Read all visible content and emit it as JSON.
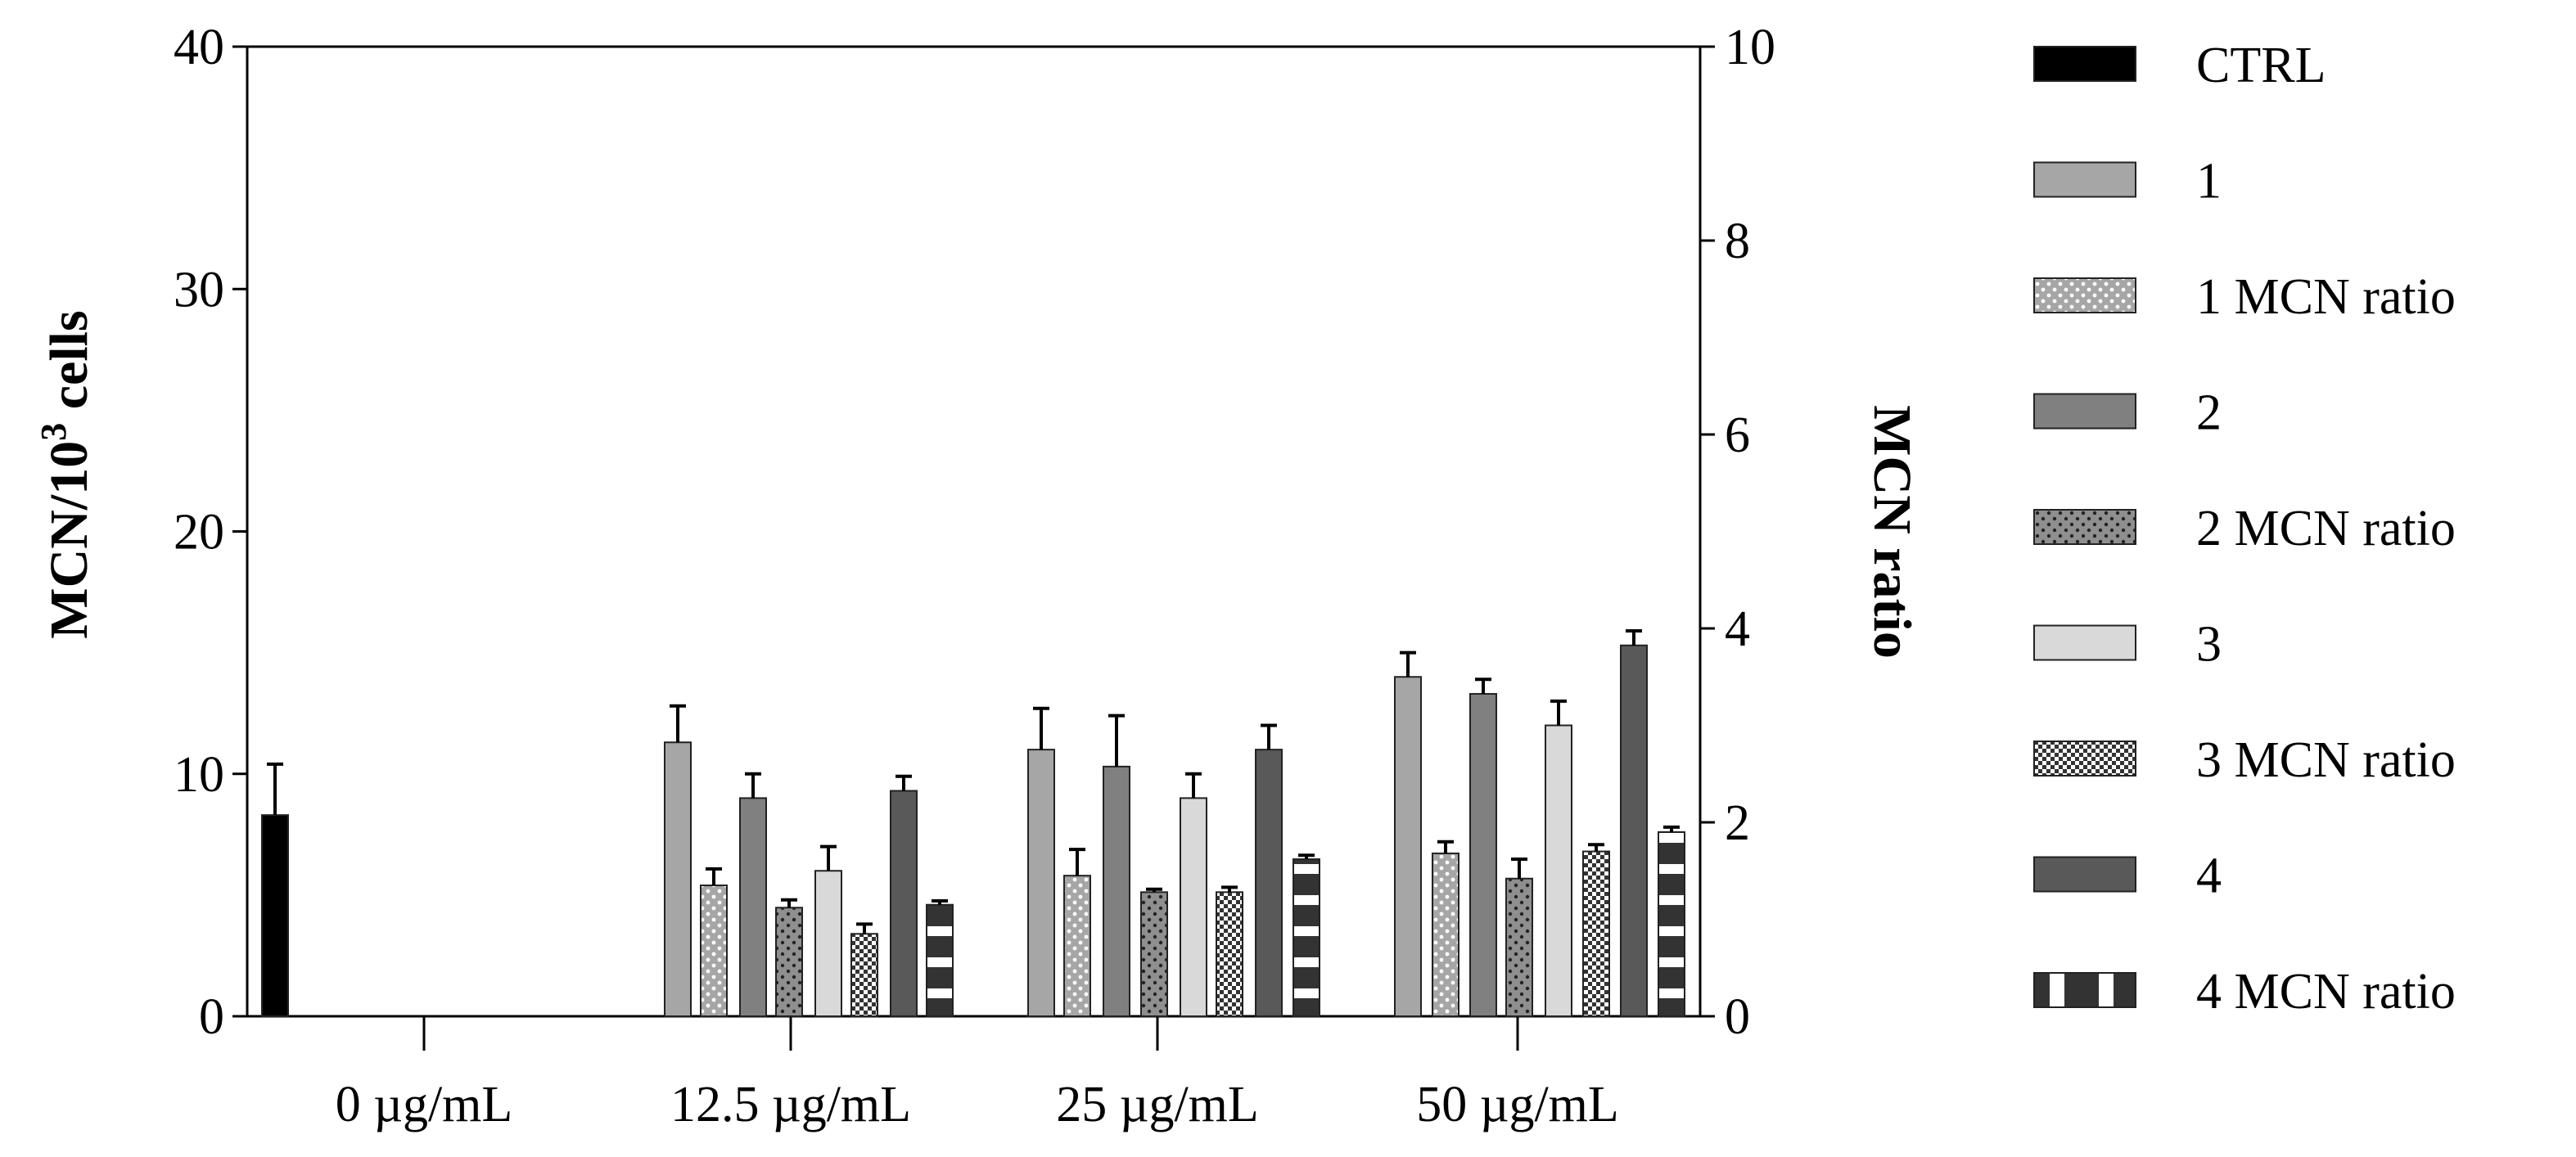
{
  "chart_data": {
    "type": "bar",
    "categories": [
      "0 µg/mL",
      "12.5 µg/mL",
      "25 µg/mL",
      "50 µg/mL"
    ],
    "left_axis": {
      "label_main": "MCN/10",
      "label_sup": "3",
      "label_tail": " cells",
      "ylim": [
        0,
        40
      ],
      "ticks": [
        "0",
        "10",
        "20",
        "30",
        "40"
      ]
    },
    "right_axis": {
      "label": "MCN ratio",
      "ylim": [
        0,
        10
      ],
      "ticks": [
        "0",
        "2",
        "4",
        "6",
        "8",
        "10"
      ]
    },
    "series": [
      {
        "name": "CTRL",
        "axis": "left",
        "pattern": "solid-black",
        "values": [
          8.3,
          null,
          null,
          null
        ],
        "errors": [
          2.1,
          null,
          null,
          null
        ]
      },
      {
        "name": "1",
        "axis": "left",
        "pattern": "gray",
        "values": [
          null,
          11.3,
          11.0,
          14.0
        ],
        "errors": [
          null,
          1.5,
          1.7,
          1.0
        ]
      },
      {
        "name": "1 MCN ratio",
        "axis": "right",
        "pattern": "gray-white-dots",
        "values": [
          null,
          1.35,
          1.45,
          1.68
        ],
        "errors": [
          null,
          0.17,
          0.27,
          0.12
        ]
      },
      {
        "name": "2",
        "axis": "left",
        "pattern": "dark-gray",
        "values": [
          null,
          9.0,
          10.3,
          13.3
        ],
        "errors": [
          null,
          1.0,
          2.1,
          0.6
        ]
      },
      {
        "name": "2 MCN ratio",
        "axis": "right",
        "pattern": "gray-black-dots",
        "values": [
          null,
          1.12,
          1.28,
          1.42
        ],
        "errors": [
          null,
          0.08,
          0.03,
          0.2
        ]
      },
      {
        "name": "3",
        "axis": "left",
        "pattern": "light-gray",
        "values": [
          null,
          6.0,
          9.0,
          12.0
        ],
        "errors": [
          null,
          1.0,
          1.0,
          1.0
        ]
      },
      {
        "name": "3 MCN ratio",
        "axis": "right",
        "pattern": "checker",
        "values": [
          null,
          0.85,
          1.28,
          1.7
        ],
        "errors": [
          null,
          0.1,
          0.05,
          0.07
        ]
      },
      {
        "name": "4",
        "axis": "left",
        "pattern": "darker-gray",
        "values": [
          null,
          9.3,
          11.0,
          15.3
        ],
        "errors": [
          null,
          0.6,
          1.0,
          0.6
        ]
      },
      {
        "name": "4 MCN ratio",
        "axis": "right",
        "pattern": "black-dashes",
        "values": [
          null,
          1.15,
          1.62,
          1.9
        ],
        "errors": [
          null,
          0.04,
          0.04,
          0.05
        ]
      }
    ]
  }
}
